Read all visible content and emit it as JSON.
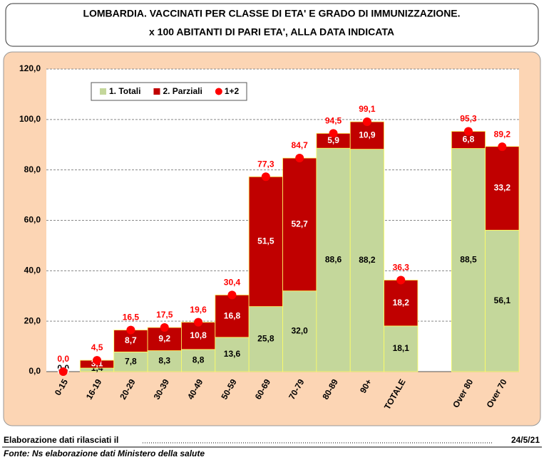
{
  "chart_data": {
    "type": "bar",
    "title": "LOMBARDIA. VACCINATI  PER CLASSE DI ETA' E GRADO DI IMMUNIZZAZIONE.",
    "subtitle": "x 100 ABITANTI DI PARI ETA', ALLA DATA INDICATA",
    "stacked": true,
    "categories": [
      "0-15",
      "16-19",
      "20-29",
      "30-39",
      "40-49",
      "50-59",
      "60-69",
      "70-79",
      "80-89",
      "90+",
      "TOTALE",
      null,
      "Over 80",
      "Over 70"
    ],
    "series": [
      {
        "name": "1. Totali",
        "color": "#c4d79b",
        "values": [
          0.0,
          1.4,
          7.8,
          8.3,
          8.8,
          13.6,
          25.8,
          32.0,
          88.6,
          88.2,
          18.1,
          null,
          88.5,
          56.1
        ],
        "value_labels": [
          "0,0",
          "1,4",
          "7,8",
          "8,3",
          "8,8",
          "13,6",
          "25,8",
          "32,0",
          "88,6",
          "88,2",
          "18,1",
          null,
          "88,5",
          "56,1"
        ]
      },
      {
        "name": "2. Parziali",
        "color": "#c00000",
        "values": [
          0.0,
          3.1,
          8.7,
          9.2,
          10.8,
          16.8,
          51.5,
          52.7,
          5.9,
          10.9,
          18.2,
          null,
          6.8,
          33.2
        ],
        "value_labels": [
          "0,0",
          "3,1",
          "8,7",
          "9,2",
          "10,8",
          "16,8",
          "51,5",
          "52,7",
          "5,9",
          "10,9",
          "18,2",
          null,
          "6,8",
          "33,2"
        ]
      },
      {
        "name": "1+2",
        "color": "#ff0000",
        "type": "scatter",
        "values": [
          0.0,
          4.5,
          16.5,
          17.5,
          19.6,
          30.4,
          77.3,
          84.7,
          94.5,
          99.1,
          36.3,
          null,
          95.3,
          89.2
        ],
        "value_labels": [
          "0,0",
          "4,5",
          "16,5",
          "17,5",
          "19,6",
          "30,4",
          "77,3",
          "84,7",
          "94,5",
          "99,1",
          "36,3",
          null,
          "95,3",
          "89,2"
        ]
      }
    ],
    "ylim": [
      0,
      120
    ],
    "yticks": [
      {
        "value": 0,
        "label": "0,0"
      },
      {
        "value": 20,
        "label": "20,0"
      },
      {
        "value": 40,
        "label": "40,0"
      },
      {
        "value": 60,
        "label": "60,0"
      },
      {
        "value": 80,
        "label": "80,0"
      },
      {
        "value": 100,
        "label": "100,0"
      },
      {
        "value": 120,
        "label": "120,0"
      }
    ],
    "grid": true,
    "legend": "top-left",
    "footer": {
      "note": "Elaborazione dati rilasciati il",
      "date": "24/5/21",
      "source": "Fonte: Ns elaborazione dati Ministero della salute"
    }
  }
}
